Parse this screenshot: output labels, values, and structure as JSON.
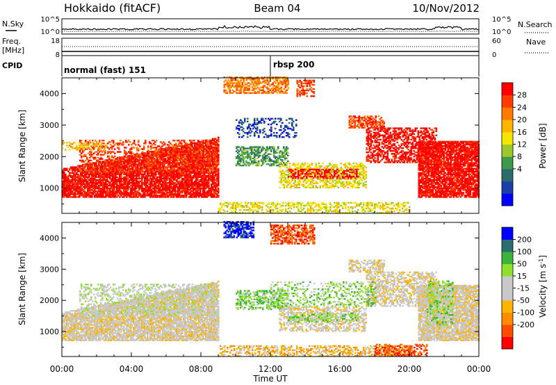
{
  "header": {
    "station": "Hokkaido (fitACF)",
    "beam": "Beam 04",
    "date": "10/Nov/2012"
  },
  "status": {
    "nsky_label": "N.Sky",
    "nsearch_label": "N.Search",
    "freq_label": "Freq.",
    "freq_unit": "[MHz]",
    "nave_label": "Nave",
    "cpid_label": "CPID",
    "noise_ticks_left": [
      "10^5",
      "10^0"
    ],
    "noise_ticks_right": [
      "10^5",
      "10^0"
    ],
    "freq_ticks": [
      "18",
      "8"
    ],
    "nave_ticks": [
      "60",
      "0"
    ],
    "cpid_segments": [
      {
        "label": "normal (fast) 151",
        "start_hour": 0,
        "end_hour": 12
      },
      {
        "label": "rbsp 200",
        "start_hour": 12,
        "end_hour": 24
      }
    ]
  },
  "chart_data": [
    {
      "type": "heatmap",
      "title": "",
      "xlabel": "Time UT",
      "ylabel": "Slant Range [km]",
      "x_ticks": [
        "00:00",
        "04:00",
        "08:00",
        "12:00",
        "16:00",
        "20:00",
        "00:00"
      ],
      "y_ticks": [
        1000,
        2000,
        3000,
        4000
      ],
      "xlim_hours": [
        0,
        24
      ],
      "ylim_km": [
        200,
        4500
      ],
      "colorbar": {
        "label": "Power [dB]",
        "ticks": [
          "28",
          "24",
          "20",
          "16",
          "12",
          "8",
          "4"
        ],
        "colors": [
          "#0000ff",
          "#1a3fa8",
          "#2b6b6b",
          "#3d9a4a",
          "#9ec82a",
          "#f5e600",
          "#ffb400",
          "#ff7a00",
          "#ff3c00",
          "#ff0000"
        ]
      },
      "regions": [
        {
          "t0": 0.0,
          "t1": 9.0,
          "r0": 700,
          "r1": 1600,
          "r1_end": 2600,
          "level": 9,
          "density": 0.85
        },
        {
          "t0": 1.0,
          "t1": 9.0,
          "r0": 1500,
          "r1": 2500,
          "level": 8,
          "density": 0.35
        },
        {
          "t0": 0.0,
          "t1": 2.5,
          "r0": 2200,
          "r1": 2450,
          "level": 6,
          "density": 0.4
        },
        {
          "t0": 10.0,
          "t1": 13.0,
          "r0": 1700,
          "r1": 2300,
          "level": 3,
          "density": 0.55
        },
        {
          "t0": 12.5,
          "t1": 17.5,
          "r0": 1000,
          "r1": 1800,
          "level": 5,
          "density": 0.5
        },
        {
          "t0": 13.0,
          "t1": 17.0,
          "r0": 1300,
          "r1": 1600,
          "level": 9,
          "density": 0.5
        },
        {
          "t0": 9.3,
          "t1": 13.0,
          "r0": 4000,
          "r1": 4500,
          "level": 7,
          "density": 0.6
        },
        {
          "t0": 13.5,
          "t1": 14.5,
          "r0": 3900,
          "r1": 4400,
          "level": 8,
          "density": 0.5
        },
        {
          "t0": 16.5,
          "t1": 18.5,
          "r0": 2900,
          "r1": 3300,
          "level": 8,
          "density": 0.6
        },
        {
          "t0": 17.5,
          "t1": 21.5,
          "r0": 1800,
          "r1": 2900,
          "level": 9,
          "density": 0.55
        },
        {
          "t0": 20.5,
          "t1": 24.0,
          "r0": 700,
          "r1": 2500,
          "level": 9,
          "density": 0.85
        },
        {
          "t0": 9.0,
          "t1": 20.0,
          "r0": 200,
          "r1": 550,
          "level": 5,
          "density": 0.45
        },
        {
          "t0": 10.0,
          "t1": 13.5,
          "r0": 2600,
          "r1": 3200,
          "level": 1,
          "density": 0.3
        }
      ]
    },
    {
      "type": "heatmap",
      "title": "",
      "xlabel": "Time UT",
      "ylabel": "Slant Range [km]",
      "x_ticks": [
        "00:00",
        "04:00",
        "08:00",
        "12:00",
        "16:00",
        "20:00",
        "00:00"
      ],
      "y_ticks": [
        1000,
        2000,
        3000,
        4000
      ],
      "xlim_hours": [
        0,
        24
      ],
      "ylim_km": [
        200,
        4500
      ],
      "colorbar": {
        "label": "Velocity [m s",
        "label_sup": "-1",
        "label_close": "]",
        "ticks": [
          "200",
          "100",
          "50",
          "15",
          "-15",
          "-50",
          "-100",
          "-200"
        ],
        "colors": [
          "#ff0000",
          "#ff4d00",
          "#ff8c00",
          "#ffb400",
          "#c8c8c8",
          "#c8c8c8",
          "#8ee02a",
          "#3cb43c",
          "#2a6e6e",
          "#0000ff"
        ]
      },
      "regions": [
        {
          "t0": 0.0,
          "t1": 9.0,
          "r0": 700,
          "r1": 1600,
          "r1_end": 2600,
          "level": 4,
          "density": 0.85
        },
        {
          "t0": 1.0,
          "t1": 9.0,
          "r0": 1500,
          "r1": 2500,
          "level": 5,
          "density": 0.35
        },
        {
          "t0": 10.0,
          "t1": 13.0,
          "r0": 1700,
          "r1": 2300,
          "level": 6,
          "density": 0.55
        },
        {
          "t0": 12.5,
          "t1": 17.5,
          "r0": 1000,
          "r1": 1800,
          "level": 4,
          "density": 0.5
        },
        {
          "t0": 13.0,
          "t1": 17.0,
          "r0": 1300,
          "r1": 1600,
          "level": 6,
          "density": 0.4
        },
        {
          "t0": 9.3,
          "t1": 11.0,
          "r0": 4000,
          "r1": 4500,
          "level": 9,
          "density": 0.6
        },
        {
          "t0": 12.0,
          "t1": 14.5,
          "r0": 3800,
          "r1": 4400,
          "level": 1,
          "density": 0.6
        },
        {
          "t0": 16.5,
          "t1": 18.5,
          "r0": 2900,
          "r1": 3300,
          "level": 4,
          "density": 0.5
        },
        {
          "t0": 17.5,
          "t1": 21.5,
          "r0": 1800,
          "r1": 2900,
          "level": 4,
          "density": 0.55
        },
        {
          "t0": 20.5,
          "t1": 24.0,
          "r0": 700,
          "r1": 2500,
          "level": 4,
          "density": 0.85
        },
        {
          "t0": 21.0,
          "t1": 22.5,
          "r0": 1200,
          "r1": 2600,
          "level": 6,
          "density": 0.4
        },
        {
          "t0": 9.0,
          "t1": 20.0,
          "r0": 200,
          "r1": 550,
          "level": 3,
          "density": 0.45
        },
        {
          "t0": 18.0,
          "t1": 21.0,
          "r0": 200,
          "r1": 600,
          "level": 1,
          "density": 0.5
        },
        {
          "t0": 12.0,
          "t1": 18.0,
          "r0": 1800,
          "r1": 2600,
          "level": 6,
          "density": 0.25
        }
      ]
    }
  ]
}
